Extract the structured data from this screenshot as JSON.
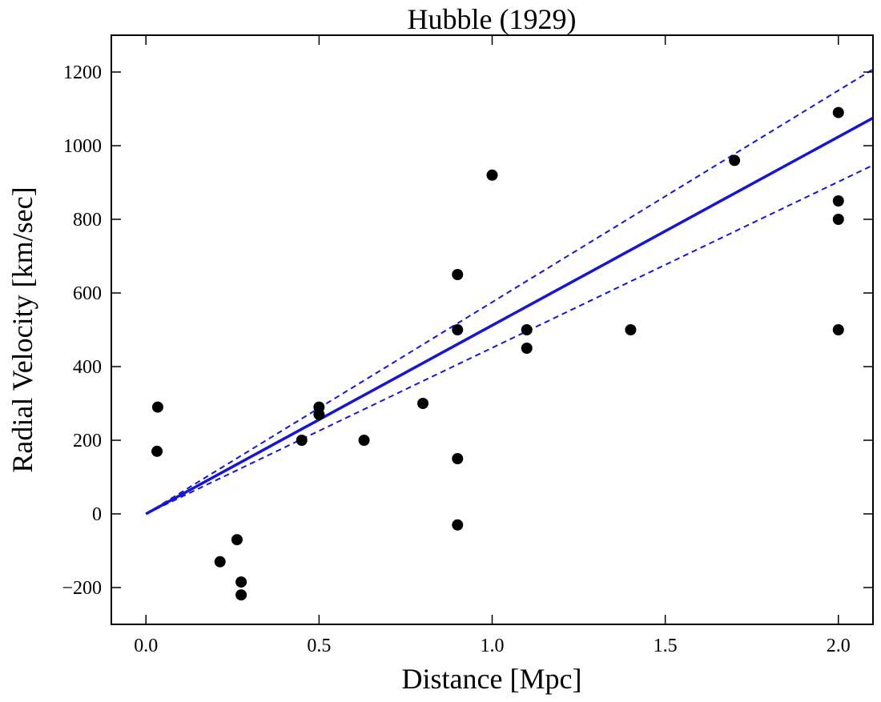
{
  "chart_data": {
    "type": "scatter",
    "title": "Hubble (1929)",
    "xlabel": "Distance [Mpc]",
    "ylabel": "Radial Velocity [km/sec]",
    "xlim": [
      -0.1,
      2.1
    ],
    "ylim": [
      -300,
      1300
    ],
    "xticks": [
      0.0,
      0.5,
      1.0,
      1.5,
      2.0
    ],
    "xtick_labels": [
      "0.0",
      "0.5",
      "1.0",
      "1.5",
      "2.0"
    ],
    "yticks": [
      -200,
      0,
      200,
      400,
      600,
      800,
      1000,
      1200
    ],
    "ytick_labels": [
      "−200",
      "0",
      "200",
      "400",
      "600",
      "800",
      "1000",
      "1200"
    ],
    "grid": false,
    "colors": {
      "points": "#000000",
      "fit": "#1515d8"
    },
    "series": [
      {
        "kind": "points",
        "x": [
          0.032,
          0.034,
          0.214,
          0.263,
          0.275,
          0.275,
          0.45,
          0.5,
          0.5,
          0.63,
          0.8,
          0.9,
          0.9,
          0.9,
          0.9,
          1.0,
          1.1,
          1.1,
          1.4,
          1.7,
          2.0,
          2.0,
          2.0,
          2.0
        ],
        "y": [
          170,
          290,
          -130,
          -70,
          -185,
          -220,
          200,
          290,
          270,
          200,
          300,
          -30,
          650,
          150,
          500,
          920,
          450,
          500,
          500,
          960,
          500,
          850,
          800,
          1090
        ]
      },
      {
        "kind": "fit",
        "style": "solid",
        "slope": 512
      },
      {
        "kind": "fit",
        "style": "dashed",
        "slope": 575
      },
      {
        "kind": "fit",
        "style": "dashed",
        "slope": 451
      }
    ]
  }
}
